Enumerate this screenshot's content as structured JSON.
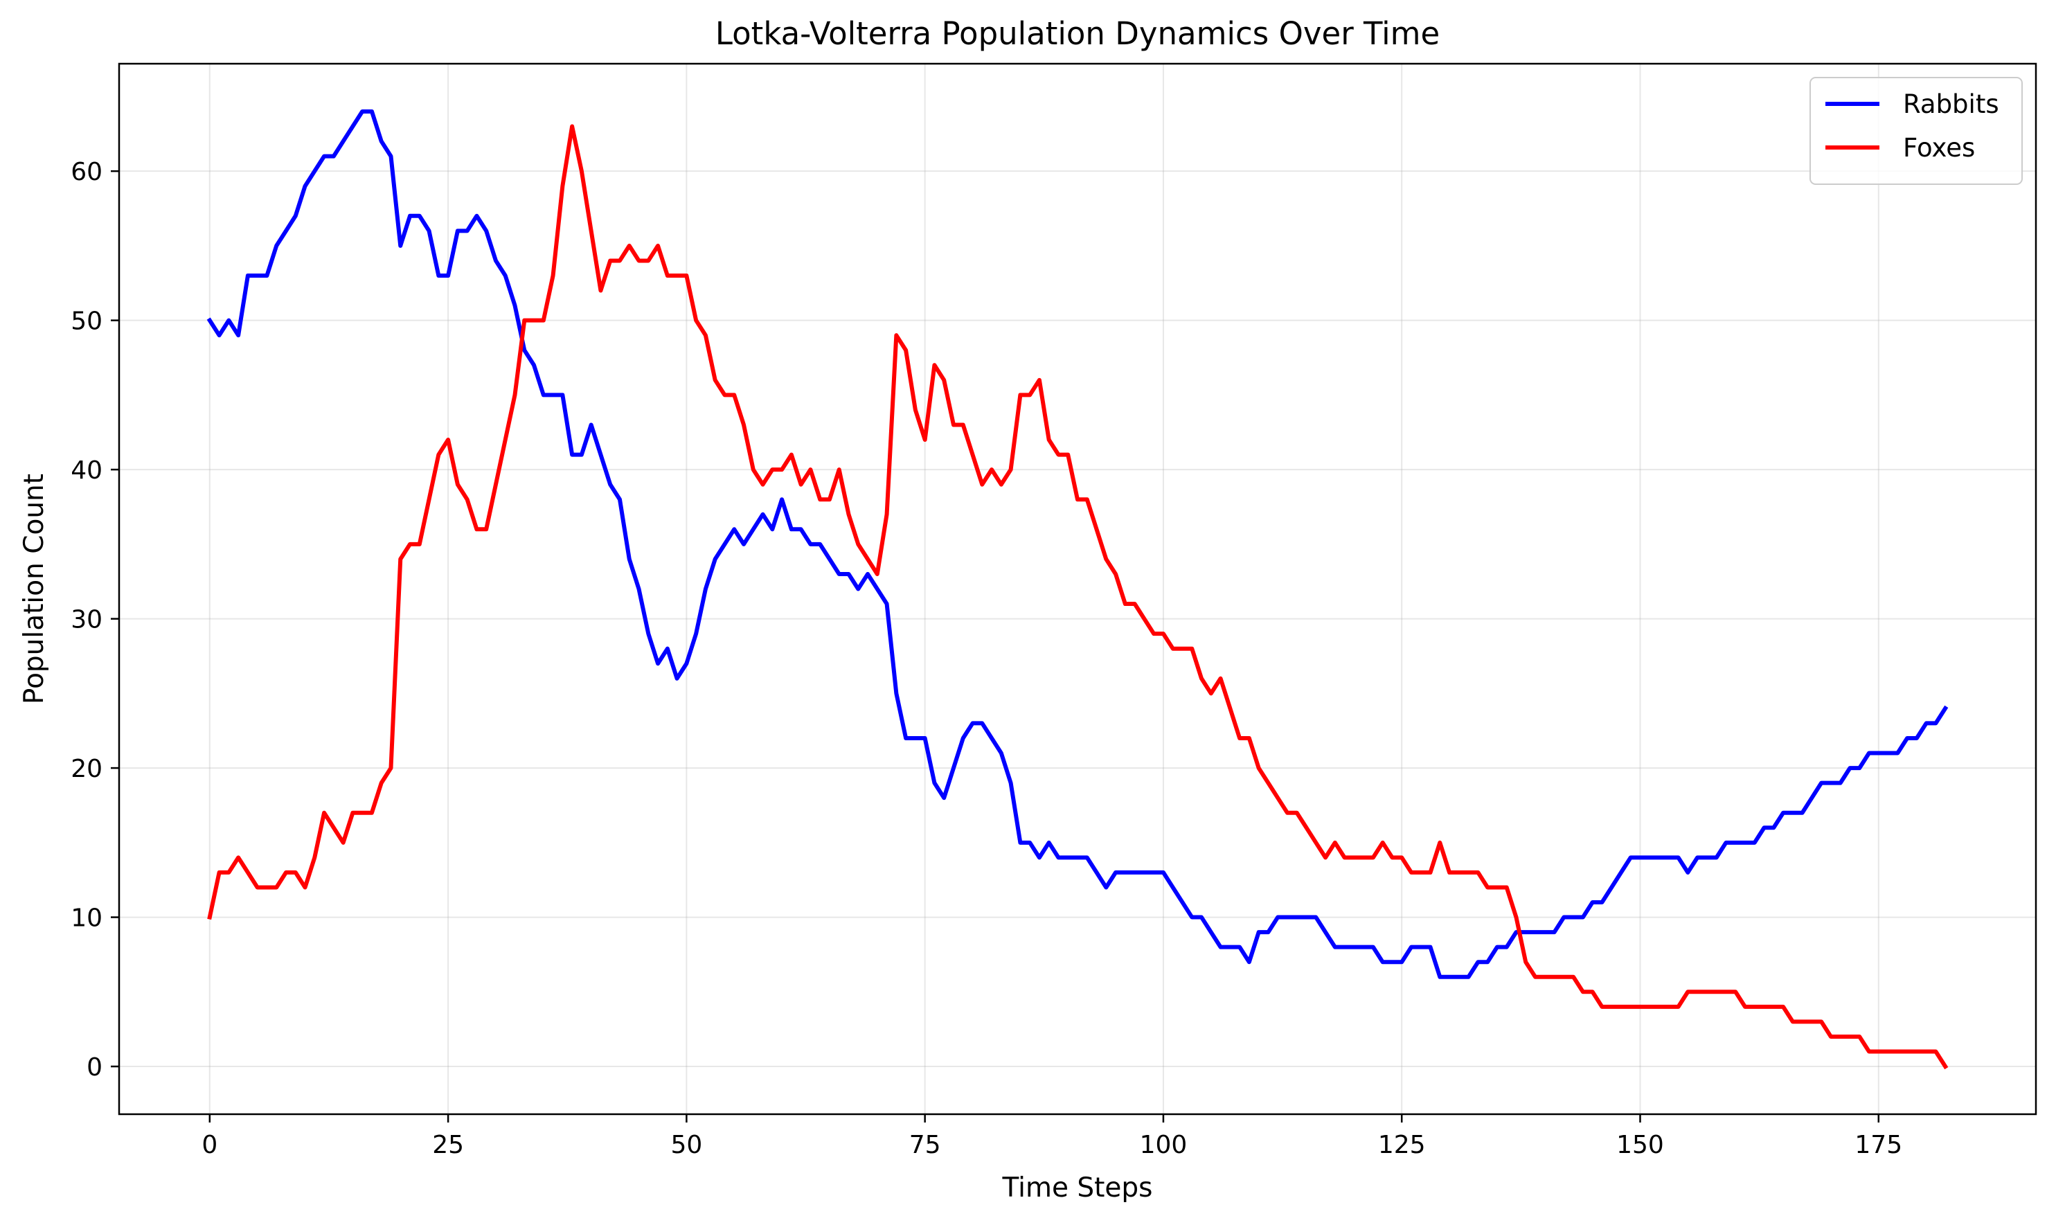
{
  "chart_data": {
    "type": "line",
    "title": "Lotka-Volterra Population Dynamics Over Time",
    "xlabel": "Time Steps",
    "ylabel": "Population Count",
    "xlim": [
      -9.5,
      191.5
    ],
    "ylim": [
      -3.2,
      67.2
    ],
    "x_ticks": [
      0,
      25,
      50,
      75,
      100,
      125,
      150,
      175
    ],
    "y_ticks": [
      0,
      10,
      20,
      30,
      40,
      50,
      60
    ],
    "grid": true,
    "legend_position": "top-right",
    "x": [
      0,
      1,
      2,
      3,
      4,
      5,
      6,
      7,
      8,
      9,
      10,
      11,
      12,
      13,
      14,
      15,
      16,
      17,
      18,
      19,
      20,
      21,
      22,
      23,
      24,
      25,
      26,
      27,
      28,
      29,
      30,
      31,
      32,
      33,
      34,
      35,
      36,
      37,
      38,
      39,
      40,
      41,
      42,
      43,
      44,
      45,
      46,
      47,
      48,
      49,
      50,
      51,
      52,
      53,
      54,
      55,
      56,
      57,
      58,
      59,
      60,
      61,
      62,
      63,
      64,
      65,
      66,
      67,
      68,
      69,
      70,
      71,
      72,
      73,
      74,
      75,
      76,
      77,
      78,
      79,
      80,
      81,
      82,
      83,
      84,
      85,
      86,
      87,
      88,
      89,
      90,
      91,
      92,
      93,
      94,
      95,
      96,
      97,
      98,
      99,
      100,
      101,
      102,
      103,
      104,
      105,
      106,
      107,
      108,
      109,
      110,
      111,
      112,
      113,
      114,
      115,
      116,
      117,
      118,
      119,
      120,
      121,
      122,
      123,
      124,
      125,
      126,
      127,
      128,
      129,
      130,
      131,
      132,
      133,
      134,
      135,
      136,
      137,
      138,
      139,
      140,
      141,
      142,
      143,
      144,
      145,
      146,
      147,
      148,
      149,
      150,
      151,
      152,
      153,
      154,
      155,
      156,
      157,
      158,
      159,
      160,
      161,
      162,
      163,
      164,
      165,
      166,
      167,
      168,
      169,
      170,
      171,
      172,
      173,
      174,
      175,
      176,
      177,
      178,
      179,
      180,
      181,
      182
    ],
    "series": [
      {
        "name": "Rabbits",
        "color": "#0000ff",
        "values": [
          50,
          49,
          50,
          49,
          53,
          53,
          53,
          55,
          56,
          57,
          59,
          60,
          61,
          61,
          62,
          63,
          64,
          64,
          62,
          61,
          55,
          57,
          57,
          56,
          53,
          53,
          56,
          56,
          57,
          56,
          54,
          53,
          51,
          48,
          47,
          45,
          45,
          45,
          41,
          41,
          43,
          41,
          39,
          38,
          34,
          32,
          29,
          27,
          28,
          26,
          27,
          29,
          32,
          34,
          35,
          36,
          35,
          36,
          37,
          36,
          38,
          36,
          36,
          35,
          35,
          34,
          33,
          33,
          32,
          33,
          32,
          31,
          25,
          22,
          22,
          22,
          19,
          18,
          20,
          22,
          23,
          23,
          22,
          21,
          19,
          15,
          15,
          14,
          15,
          14,
          14,
          14,
          14,
          13,
          12,
          13,
          13,
          13,
          13,
          13,
          13,
          12,
          11,
          10,
          10,
          9,
          8,
          8,
          8,
          7,
          9,
          9,
          10,
          10,
          10,
          10,
          10,
          9,
          8,
          8,
          8,
          8,
          8,
          7,
          7,
          7,
          8,
          8,
          8,
          6,
          6,
          6,
          6,
          7,
          7,
          8,
          8,
          9,
          9,
          9,
          9,
          9,
          10,
          10,
          10,
          11,
          11,
          12,
          13,
          14,
          14,
          14,
          14,
          14,
          14,
          13,
          14,
          14,
          14,
          15,
          15,
          15,
          15,
          16,
          16,
          17,
          17,
          17,
          18,
          19,
          19,
          19,
          20,
          20,
          21,
          21,
          21,
          21,
          22,
          22,
          23,
          23,
          24
        ]
      },
      {
        "name": "Foxes",
        "color": "#ff0000",
        "values": [
          10,
          13,
          13,
          14,
          13,
          12,
          12,
          12,
          13,
          13,
          12,
          14,
          17,
          16,
          15,
          17,
          17,
          17,
          19,
          20,
          34,
          35,
          35,
          38,
          41,
          42,
          39,
          38,
          36,
          36,
          39,
          42,
          45,
          50,
          50,
          50,
          53,
          59,
          63,
          60,
          56,
          52,
          54,
          54,
          55,
          54,
          54,
          55,
          53,
          53,
          53,
          50,
          49,
          46,
          45,
          45,
          43,
          40,
          39,
          40,
          40,
          41,
          39,
          40,
          38,
          38,
          40,
          37,
          35,
          34,
          33,
          37,
          49,
          48,
          44,
          42,
          47,
          46,
          43,
          43,
          41,
          39,
          40,
          39,
          40,
          45,
          45,
          46,
          42,
          41,
          41,
          38,
          38,
          36,
          34,
          33,
          31,
          31,
          30,
          29,
          29,
          28,
          28,
          28,
          26,
          25,
          26,
          24,
          22,
          22,
          20,
          19,
          18,
          17,
          17,
          16,
          15,
          14,
          15,
          14,
          14,
          14,
          14,
          15,
          14,
          14,
          13,
          13,
          13,
          15,
          13,
          13,
          13,
          13,
          12,
          12,
          12,
          10,
          7,
          6,
          6,
          6,
          6,
          6,
          5,
          5,
          4,
          4,
          4,
          4,
          4,
          4,
          4,
          4,
          4,
          5,
          5,
          5,
          5,
          5,
          5,
          4,
          4,
          4,
          4,
          4,
          3,
          3,
          3,
          3,
          2,
          2,
          2,
          2,
          1,
          1,
          1,
          1,
          1,
          1,
          1,
          1,
          0
        ]
      }
    ]
  }
}
